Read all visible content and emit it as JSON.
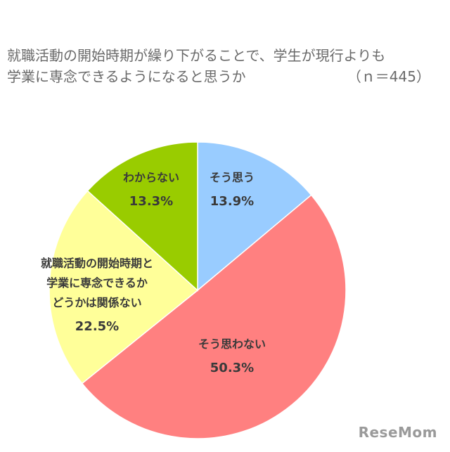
{
  "chart_data": {
    "type": "pie",
    "title_line1": "就職活動の開始時期が繰り下がることで、学生が現行よりも",
    "title_line2": "学業に専念できるようになると思うか",
    "sample_size": "（ｎ＝445）",
    "slices": [
      {
        "label_lines": [
          "そう思う"
        ],
        "value": 13.9,
        "value_label": "13.9%",
        "color": "#99CCFF"
      },
      {
        "label_lines": [
          "そう思わない"
        ],
        "value": 50.3,
        "value_label": "50.3%",
        "color": "#FF8080"
      },
      {
        "label_lines": [
          "就職活動の開始時期と",
          "学業に専念できるか",
          "どうかは関係ない"
        ],
        "value": 22.5,
        "value_label": "22.5%",
        "color": "#FFFF99"
      },
      {
        "label_lines": [
          "わからない"
        ],
        "value": 13.3,
        "value_label": "13.3%",
        "color": "#99CC00"
      }
    ]
  },
  "watermark": "ReseMom"
}
